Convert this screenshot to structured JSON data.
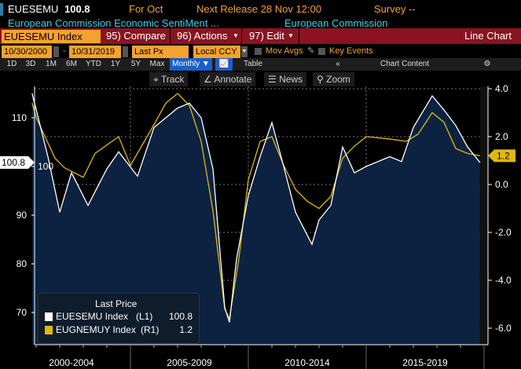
{
  "header": {
    "ticker": "EUESEMU",
    "value": "100.8",
    "period": "For Oct",
    "next_release": "Next Release 28 Nov 12:00",
    "survey": "Survey --",
    "description": "European Commission Economic SentiMent ...",
    "source": "European Commission"
  },
  "toolbar": {
    "security": "EUESEMU Index",
    "compare": "95) Compare",
    "actions": "96) Actions",
    "edit": "97) Edit",
    "chart_type": "Line Chart"
  },
  "controls": {
    "start_date": "10/30/2000",
    "end_date": "10/31/2019",
    "field": "Last Px",
    "currency": "Local CCY",
    "mov_avgs": "Mov Avgs",
    "key_events": "Key Events"
  },
  "ranges": [
    "1D",
    "3D",
    "1M",
    "6M",
    "YTD",
    "1Y",
    "5Y",
    "Max"
  ],
  "frequency": "Monthly ▼",
  "table": "Table",
  "chart_content": "Chart Content",
  "tools": [
    "Track",
    "Annotate",
    "News",
    "Zoom"
  ],
  "colors": {
    "white_series": "#ffffff",
    "yellow_series": "#e0b810",
    "area": "#0c2240"
  },
  "chart_data": {
    "type": "line",
    "x_tick_labels": [
      "2000-2004",
      "2005-2009",
      "2010-2014",
      "2015-2019"
    ],
    "left_axis": {
      "ticks": [
        70,
        80,
        90,
        100,
        110
      ],
      "range": [
        64,
        117
      ]
    },
    "right_axis": {
      "ticks": [
        "4.0",
        "2.0",
        "0.0",
        "-2.0",
        "-4.0",
        "-6.0"
      ],
      "tick_values": [
        4,
        2,
        0,
        -2,
        -4,
        -6
      ],
      "range": [
        -6.6,
        4.1
      ]
    },
    "legend": {
      "title": "Last Price",
      "entries": [
        {
          "name": "EUESEMU Index",
          "axis": "(L1)",
          "last": "100.8"
        },
        {
          "name": "EUGNEMUY Index",
          "axis": "(R1)",
          "last": "1.2"
        }
      ]
    },
    "series": [
      {
        "name": "EUESEMU Index",
        "axis": "left",
        "x": [
          2000.83,
          2001.5,
          2002.0,
          2002.5,
          2003.2,
          2004.0,
          2004.5,
          2005.3,
          2006.0,
          2007.0,
          2007.5,
          2008.0,
          2008.5,
          2009.0,
          2009.2,
          2009.5,
          2010.0,
          2010.5,
          2011.0,
          2011.5,
          2012.0,
          2012.7,
          2013.0,
          2013.5,
          2014.0,
          2014.5,
          2015.0,
          2016.0,
          2016.5,
          2017.0,
          2017.8,
          2018.3,
          2018.8,
          2019.3,
          2019.83
        ],
        "y": [
          115,
          102,
          90.6,
          98.7,
          92,
          99.5,
          103,
          98,
          108,
          112,
          113,
          110,
          99.5,
          71,
          68,
          81,
          94,
          102,
          109,
          100,
          90.6,
          84,
          89,
          92,
          104,
          98.7,
          100,
          102,
          101,
          108,
          114.5,
          111.6,
          108.4,
          104,
          100.8
        ]
      },
      {
        "name": "EUGNEMUY Index",
        "axis": "right",
        "x": [
          2000.83,
          2001.0,
          2001.8,
          2002.2,
          2003.0,
          2003.5,
          2004.5,
          2005.0,
          2006.0,
          2006.5,
          2007.0,
          2007.5,
          2008.0,
          2008.5,
          2009.0,
          2009.2,
          2009.6,
          2010.0,
          2010.5,
          2011.0,
          2011.5,
          2012.0,
          2012.5,
          2013.0,
          2013.5,
          2014.0,
          2014.5,
          2015.0,
          2016.0,
          2016.7,
          2017.2,
          2017.8,
          2018.3,
          2018.8,
          2019.3,
          2019.83
        ],
        "y": [
          3.4,
          2.8,
          1.1,
          0.7,
          0.3,
          1.3,
          2.0,
          0.8,
          2.5,
          3.4,
          3.8,
          3.3,
          1.8,
          -1.1,
          -5.2,
          -5.6,
          -3.1,
          0.2,
          1.8,
          2.0,
          0.8,
          -0.2,
          -0.7,
          -1.0,
          -0.5,
          1.1,
          1.6,
          2.0,
          1.9,
          1.8,
          2.1,
          3.0,
          2.6,
          1.5,
          1.3,
          1.2
        ]
      }
    ]
  }
}
